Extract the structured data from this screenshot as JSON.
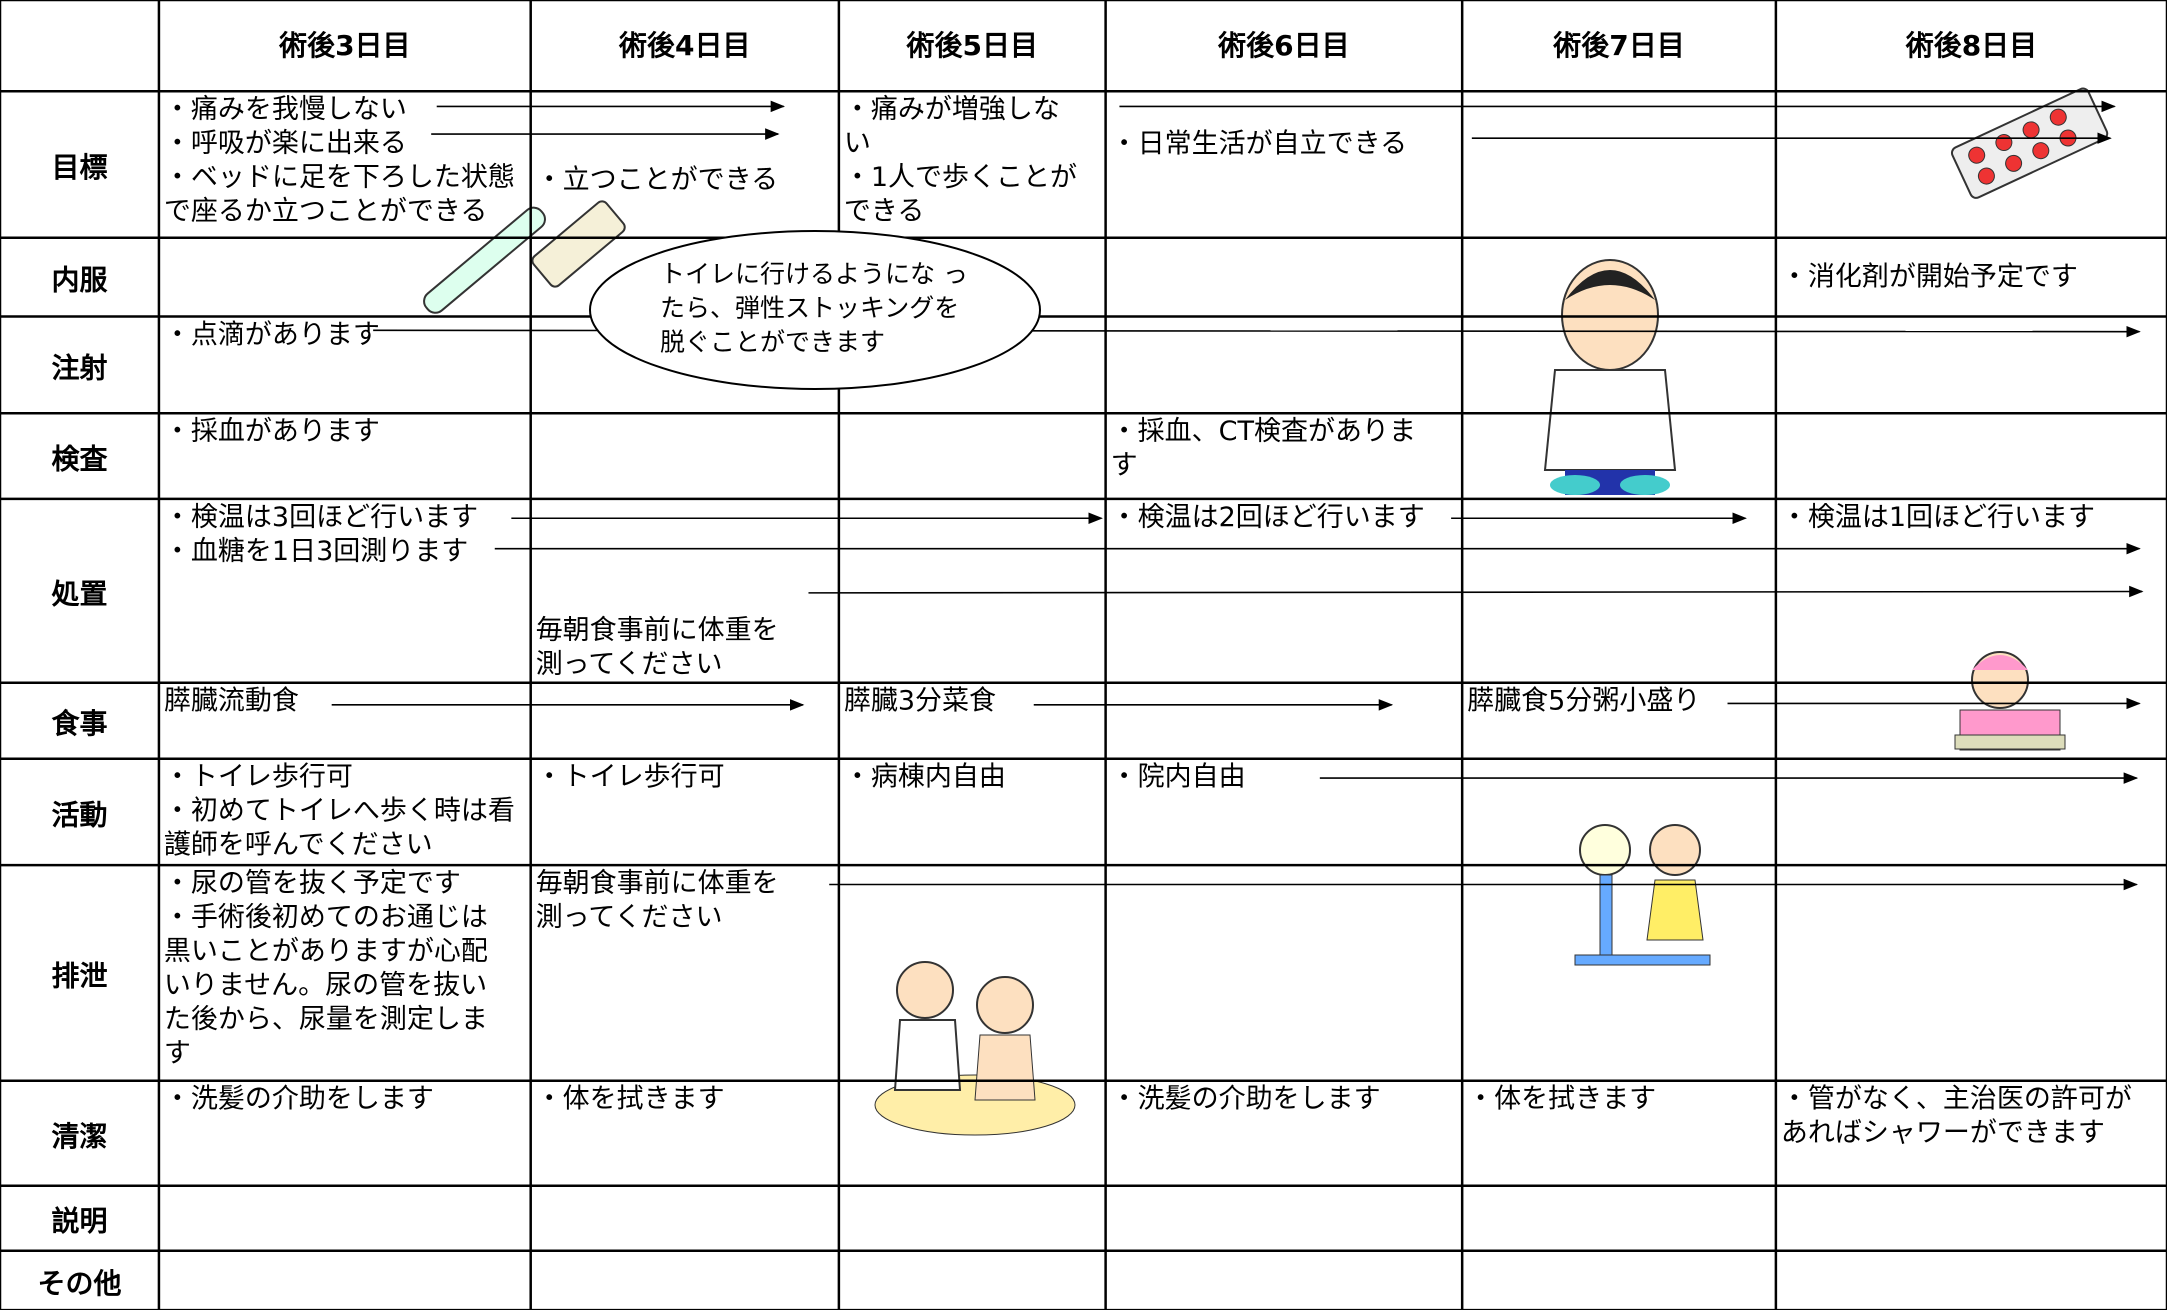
{
  "header": {
    "columns": [
      "術後3日目",
      "術後4日目",
      "術後5日目",
      "術後6日目",
      "術後7日目",
      "術後8日目"
    ]
  },
  "rows": [
    {
      "label": "目標",
      "cells": [
        [
          "・痛みを我慢しない",
          "・呼吸が楽に出来る",
          "・ベッドに足を下ろした状態",
          "で座るか立つことができる"
        ],
        [
          "・立つことができる"
        ],
        [
          "・痛みが増強しな",
          "い",
          "・1人で歩くことが",
          "できる"
        ],
        [
          "・日常生活が自立できる"
        ],
        [],
        []
      ]
    },
    {
      "label": "内服",
      "cells": [
        [],
        [],
        [],
        [],
        [],
        [
          "・消化剤が開始予定です"
        ]
      ]
    },
    {
      "label": "注射",
      "cells": [
        [
          "・点滴があります"
        ],
        [],
        [],
        [],
        [],
        []
      ]
    },
    {
      "label": "検査",
      "cells": [
        [
          "・採血があります"
        ],
        [],
        [],
        [
          "・採血、CT検査がありま",
          "す"
        ],
        [],
        []
      ]
    },
    {
      "label": "処置",
      "cells": [
        [
          "・検温は3回ほど行います",
          "・血糖を1日3回測ります"
        ],
        [
          "毎朝食事前に体重を",
          "測ってください"
        ],
        [],
        [
          "・検温は2回ほど行います"
        ],
        [],
        [
          "・検温は1回ほど行います"
        ]
      ]
    },
    {
      "label": "食事",
      "cells": [
        [
          "膵臓流動食"
        ],
        [],
        [
          "膵臓3分菜食"
        ],
        [],
        [
          "膵臓食5分粥小盛り"
        ],
        []
      ]
    },
    {
      "label": "活動",
      "cells": [
        [
          "・トイレ歩行可",
          "・初めてトイレへ歩く時は看",
          "護師を呼んでください"
        ],
        [
          "・トイレ歩行可"
        ],
        [
          "・病棟内自由"
        ],
        [
          "・院内自由"
        ],
        [],
        []
      ]
    },
    {
      "label": "排泄",
      "cells": [
        [
          "・尿の管を抜く予定です",
          "・手術後初めてのお通じは",
          "黒いことがありますが心配",
          "いりません。尿の管を抜い",
          "た後から、尿量を測定しま",
          "す"
        ],
        [
          "毎朝食事前に体重を",
          "測ってください"
        ],
        [],
        [],
        [],
        []
      ]
    },
    {
      "label": "清潔",
      "cells": [
        [
          "・洗髪の介助をします"
        ],
        [
          "・体を拭きます"
        ],
        [],
        [
          "・洗髪の介助をします"
        ],
        [
          "・体を拭きます"
        ],
        [
          "・管がなく、主治医の許可が",
          "あればシャワーができます"
        ]
      ]
    },
    {
      "label": "説明",
      "cells": [
        [],
        [],
        [],
        [],
        [],
        []
      ]
    },
    {
      "label": "その他",
      "cells": [
        [],
        [],
        [],
        [],
        [],
        []
      ]
    }
  ],
  "callout": {
    "lines": [
      "トイレに行けるようにな っ",
      "たら、弾性ストッキングを",
      "脱ぐことができます"
    ]
  }
}
